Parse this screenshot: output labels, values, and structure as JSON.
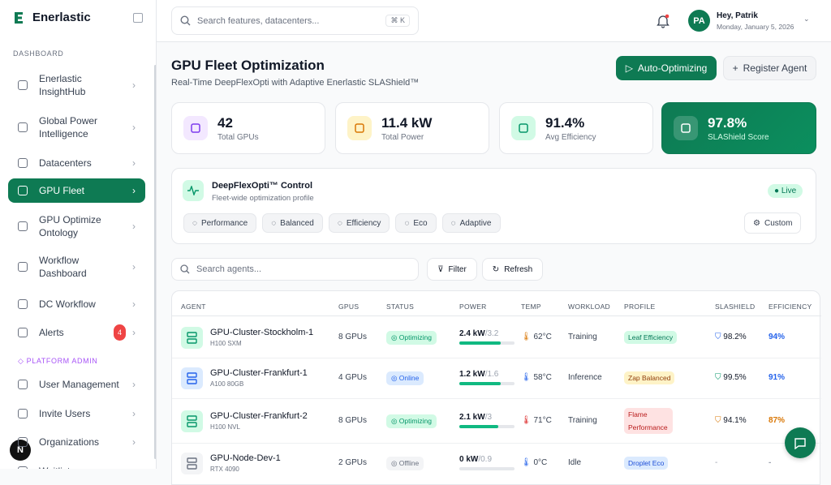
{
  "sidebar": {
    "brand": "Enerlastic",
    "section_main": "DASHBOARD",
    "nav": [
      {
        "label": "Enerlastic InsightHub"
      },
      {
        "label": "Global Power Intelligence"
      },
      {
        "label": "Datacenters"
      },
      {
        "label": "GPU Fleet",
        "active": true
      },
      {
        "label": "GPU Optimize Ontology"
      },
      {
        "label": "Workflow Dashboard"
      },
      {
        "label": "DC Workflow"
      },
      {
        "label": "Alerts",
        "badge": "4"
      }
    ],
    "section_admin": "PLATFORM ADMIN",
    "admin_nav": [
      {
        "label": "User Management"
      },
      {
        "label": "Invite Users"
      },
      {
        "label": "Organizations"
      },
      {
        "label": "Waitlist"
      }
    ],
    "avatar": "N"
  },
  "topbar": {
    "search_placeholder": "Search features, datacenters...",
    "shortcut": "⌘ K",
    "avatar": "PA",
    "greeting": "Hey, Patrik",
    "date": "Monday, January 5, 2026"
  },
  "header": {
    "title": "GPU Fleet Optimization",
    "subtitle": "Real-Time DeepFlexOpti with Adaptive Enerlastic SLAShield™",
    "primary_button": "Auto-Optimizing",
    "secondary_button": "Register Agent"
  },
  "stats": [
    {
      "value": "42",
      "label": "Total GPUs",
      "color": "#7c3aed",
      "bg": "#f3e8ff"
    },
    {
      "value": "11.4 kW",
      "label": "Total Power",
      "color": "#d97706",
      "bg": "#fef3c7"
    },
    {
      "value": "91.4%",
      "label": "Avg Efficiency",
      "color": "#059669",
      "bg": "#d1fae5"
    },
    {
      "value": "97.8%",
      "label": "SLAShield Score",
      "color": "#ffffff",
      "bg": "rgba(255,255,255,0.18)",
      "highlight": true
    }
  ],
  "control": {
    "title": "DeepFlexOpti™ Control",
    "subtitle": "Fleet-wide optimization profile",
    "status": "Live",
    "profiles": [
      "Performance",
      "Balanced",
      "Efficiency",
      "Eco",
      "Adaptive"
    ],
    "custom": "Custom"
  },
  "toolbar": {
    "search_placeholder": "Search agents...",
    "filter": "Filter",
    "refresh": "Refresh"
  },
  "table": {
    "headers": [
      "AGENT",
      "GPUS",
      "STATUS",
      "POWER",
      "TEMP",
      "WORKLOAD",
      "PROFILE",
      "SLASHIELD",
      "EFFICIENCY"
    ],
    "rows": [
      {
        "name": "GPU-Cluster-Stockholm-1",
        "model": "H100 SXM",
        "gpus": "8 GPUs",
        "status": "Optimizing",
        "status_color": "#059669",
        "status_bg": "#d1fae5",
        "power": {
          "value": 2.4,
          "label": "2.4 kW"
        },
        "power_max": {
          "value": 3.2,
          "label": "/3.2"
        },
        "temp": "62°C",
        "temp_color": "#d97706",
        "workload": "Training",
        "profile": "Leaf Efficiency",
        "profile_color": "#047857",
        "profile_bg": "#d1fae5",
        "slashield": "98.2%",
        "shield_color": "#2563eb",
        "efficiency": "94%",
        "eff_color": "#2563eb",
        "icon_color": "#059669",
        "icon_bg": "#d1fae5"
      },
      {
        "name": "GPU-Cluster-Frankfurt-1",
        "model": "A100 80GB",
        "gpus": "4 GPUs",
        "status": "Online",
        "status_color": "#2563eb",
        "status_bg": "#dbeafe",
        "power": {
          "value": 1.2,
          "label": "1.2 kW"
        },
        "power_max": {
          "value": 1.6,
          "label": "/1.6"
        },
        "temp": "58°C",
        "temp_color": "#2563eb",
        "workload": "Inference",
        "profile": "Zap Balanced",
        "profile_color": "#92400e",
        "profile_bg": "#fef3c7",
        "slashield": "99.5%",
        "shield_color": "#059669",
        "efficiency": "91%",
        "eff_color": "#2563eb",
        "icon_color": "#2563eb",
        "icon_bg": "#dbeafe"
      },
      {
        "name": "GPU-Cluster-Frankfurt-2",
        "model": "H100 NVL",
        "gpus": "8 GPUs",
        "status": "Optimizing",
        "status_color": "#059669",
        "status_bg": "#d1fae5",
        "power": {
          "value": 2.1,
          "label": "2.1 kW"
        },
        "power_max": {
          "value": 3,
          "label": "/3"
        },
        "temp": "71°C",
        "temp_color": "#dc2626",
        "workload": "Training",
        "profile": "Flame Performance",
        "profile_color": "#b91c1c",
        "profile_bg": "#fee2e2",
        "slashield": "94.1%",
        "shield_color": "#d97706",
        "efficiency": "87%",
        "eff_color": "#d97706",
        "icon_color": "#059669",
        "icon_bg": "#d1fae5"
      },
      {
        "name": "GPU-Node-Dev-1",
        "model": "RTX 4090",
        "gpus": "2 GPUs",
        "status": "Offline",
        "status_color": "#6b7280",
        "status_bg": "#f3f4f6",
        "power": {
          "value": 0,
          "label": "0 kW"
        },
        "power_max": {
          "value": 0.9,
          "label": "/0.9"
        },
        "temp": "0°C",
        "temp_color": "#2563eb",
        "workload": "Idle",
        "profile": "Droplet Eco",
        "profile_color": "#1d4ed8",
        "profile_bg": "#dbeafe",
        "slashield": "-",
        "shield_color": "#9ca3af",
        "efficiency": "-",
        "eff_color": "#9ca3af",
        "icon_color": "#6b7280",
        "icon_bg": "#f3f4f6"
      }
    ]
  }
}
